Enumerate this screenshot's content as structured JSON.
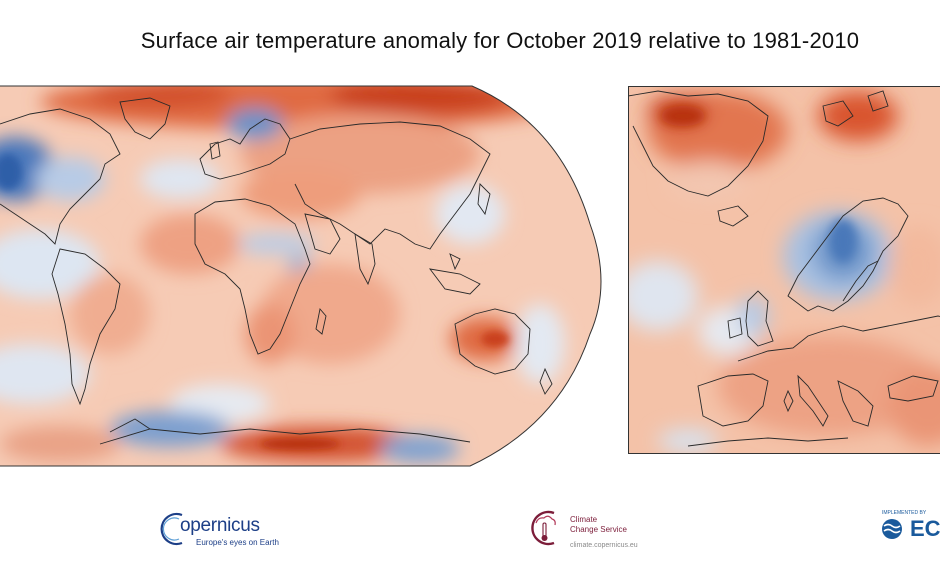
{
  "title": "Surface air temperature anomaly for October 2019 relative to 1981-2010",
  "colors": {
    "background": "#ffffff",
    "warm_light": "#f7c9b0",
    "warm_mid": "#ee9a7a",
    "warm_strong": "#d9512b",
    "warm_extreme": "#b8300f",
    "cool_light": "#dbe6f3",
    "cool_mid": "#a9c2e3",
    "cool_strong": "#3f6fb3",
    "neutral": "#f3ece8",
    "coastline": "#2a2a2a",
    "copernicus_blue": "#1d3f87",
    "c3s_red": "#7c1d3a",
    "ecmwf_blue": "#1a5a9c"
  },
  "maps": {
    "world": {
      "projection": "robinson",
      "region": "global"
    },
    "europe": {
      "region": "europe"
    }
  },
  "logos": {
    "copernicus": {
      "name": "opernicus",
      "tagline": "Europe's eyes on Earth"
    },
    "c3s": {
      "line1": "Climate",
      "line2": "Change Service",
      "url": "climate.copernicus.eu"
    },
    "ecmwf": {
      "implemented_by": "IMPLEMENTED BY",
      "name": "EC"
    }
  }
}
